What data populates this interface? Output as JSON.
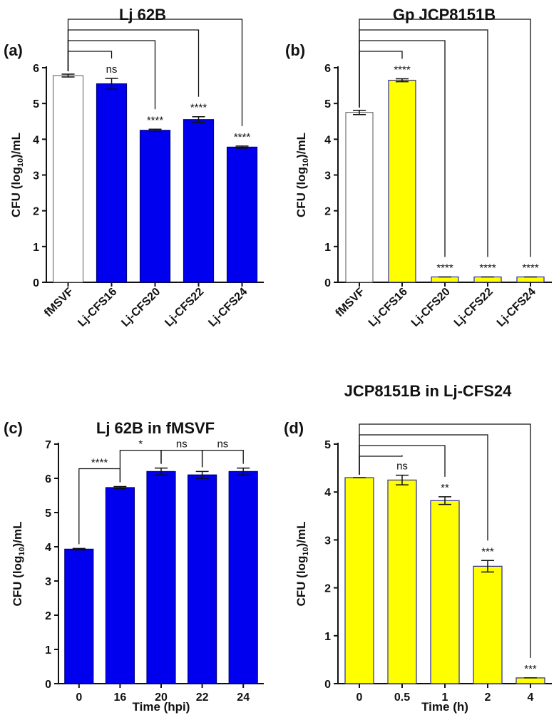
{
  "chart_data": [
    {
      "panel": "(a)",
      "type": "bar",
      "title": "Lj 62B",
      "xlabel": "",
      "ylabel": "CFU (log10)/mL",
      "ylim": [
        0,
        6
      ],
      "yticks": [
        "0",
        "1",
        "2",
        "3",
        "4",
        "5",
        "6"
      ],
      "categories": [
        "fMSVF",
        "Lj-CFS16",
        "Lj-CFS20",
        "Lj-CFS22",
        "Lj-CFS24"
      ],
      "values": [
        5.78,
        5.55,
        4.25,
        4.55,
        3.78
      ],
      "errors": [
        0.04,
        0.15,
        0.03,
        0.08,
        0.03
      ],
      "colors": [
        "#ffffff",
        "#0000ee",
        "#0000ee",
        "#0000ee",
        "#0000ee"
      ],
      "significance": [
        "ns",
        "****",
        "****",
        "****"
      ],
      "comparisons": [
        [
          0,
          1
        ],
        [
          0,
          2
        ],
        [
          0,
          3
        ],
        [
          0,
          4
        ]
      ]
    },
    {
      "panel": "(b)",
      "type": "bar",
      "title": "Gp JCP8151B",
      "xlabel": "",
      "ylabel": "CFU (log10)/mL",
      "ylim": [
        0,
        6
      ],
      "yticks": [
        "0",
        "1",
        "2",
        "3",
        "4",
        "5",
        "6"
      ],
      "categories": [
        "fMSVF",
        "Lj-CFS16",
        "Lj-CFS20",
        "Lj-CFS22",
        "Lj-CFS24"
      ],
      "values": [
        4.75,
        5.65,
        0.15,
        0.15,
        0.15
      ],
      "errors": [
        0.06,
        0.04,
        0,
        0,
        0
      ],
      "colors": [
        "#ffffff",
        "#ffff00",
        "#ffff00",
        "#ffff00",
        "#ffff00"
      ],
      "significance": [
        "****",
        "****",
        "****",
        "****"
      ],
      "comparisons": [
        [
          0,
          1
        ],
        [
          0,
          2
        ],
        [
          0,
          3
        ],
        [
          0,
          4
        ]
      ]
    },
    {
      "panel": "(c)",
      "type": "bar",
      "title": "Lj 62B in fMSVF",
      "xlabel": "Time (hpi)",
      "ylabel": "CFU (log10)/mL",
      "ylim": [
        0,
        7
      ],
      "yticks": [
        "0",
        "1",
        "2",
        "3",
        "4",
        "5",
        "6",
        "7"
      ],
      "categories": [
        "0",
        "16",
        "20",
        "22",
        "24"
      ],
      "values": [
        3.93,
        5.73,
        6.2,
        6.1,
        6.2
      ],
      "errors": [
        0.02,
        0.03,
        0.1,
        0.1,
        0.1
      ],
      "colors": [
        "#0000ee",
        "#0000ee",
        "#0000ee",
        "#0000ee",
        "#0000ee"
      ],
      "significance": [
        "****",
        "*",
        "ns",
        "ns"
      ],
      "comparisons": [
        [
          0,
          1
        ],
        [
          1,
          2
        ],
        [
          2,
          3
        ],
        [
          3,
          4
        ]
      ]
    },
    {
      "panel": "(d)",
      "type": "bar",
      "title": "JCP8151B in Lj-CFS24",
      "xlabel": "Time (h)",
      "ylabel": "CFU (log10)/mL",
      "ylim": [
        0,
        5
      ],
      "yticks": [
        "0",
        "1",
        "2",
        "3",
        "4",
        "5"
      ],
      "categories": [
        "0",
        "0.5",
        "1",
        "2",
        "4"
      ],
      "values": [
        4.3,
        4.25,
        3.82,
        2.45,
        0.12
      ],
      "errors": [
        0,
        0.1,
        0.08,
        0.12,
        0
      ],
      "colors": [
        "#ffff00",
        "#ffff00",
        "#ffff00",
        "#ffff00",
        "#ffff00"
      ],
      "significance": [
        "ns",
        "**",
        "***",
        "***"
      ],
      "comparisons": [
        [
          0,
          1
        ],
        [
          0,
          2
        ],
        [
          0,
          3
        ],
        [
          0,
          4
        ]
      ]
    }
  ]
}
